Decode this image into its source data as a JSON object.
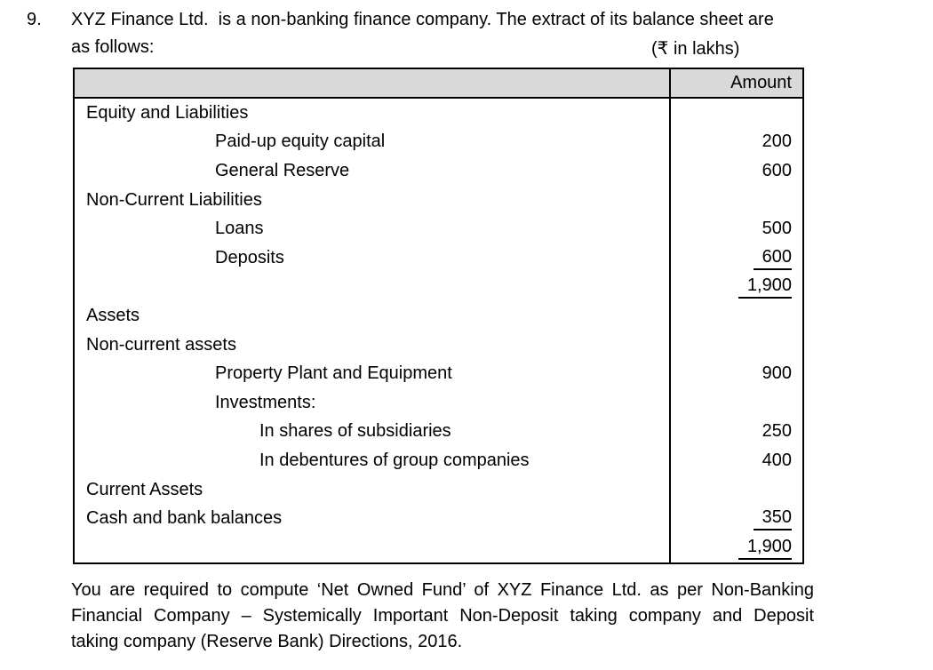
{
  "intro": {
    "number": "9.",
    "line1": "XYZ Finance Ltd.  is a non-banking finance company. The extract of its balance sheet are",
    "line2": "as follows:",
    "currency_note": "(₹ in lakhs)"
  },
  "table": {
    "amount_header": "Amount",
    "rows": [
      {
        "label": "Equity and Liabilities",
        "indent": 0,
        "amount": "",
        "underline": false
      },
      {
        "label": "Paid-up equity capital",
        "indent": 1,
        "amount": "200",
        "underline": false
      },
      {
        "label": "General Reserve",
        "indent": 1,
        "amount": "600",
        "underline": false
      },
      {
        "label": "Non-Current Liabilities",
        "indent": 0,
        "amount": "",
        "underline": false
      },
      {
        "label": "Loans",
        "indent": 1,
        "amount": "500",
        "underline": false
      },
      {
        "label": "Deposits",
        "indent": 1,
        "amount": "600",
        "underline": true
      },
      {
        "label": "",
        "indent": 0,
        "amount": "1,900",
        "underline": true
      },
      {
        "label": "Assets",
        "indent": 0,
        "amount": "",
        "underline": false
      },
      {
        "label": "Non-current assets",
        "indent": 0,
        "amount": "",
        "underline": false
      },
      {
        "label": "Property Plant and Equipment",
        "indent": 1,
        "amount": "900",
        "underline": false
      },
      {
        "label": "Investments:",
        "indent": 1,
        "amount": "",
        "underline": false
      },
      {
        "label": "In shares of subsidiaries",
        "indent": 2,
        "amount": "250",
        "underline": false
      },
      {
        "label": "In debentures of group companies",
        "indent": 2,
        "amount": "400",
        "underline": false
      },
      {
        "label": "Current Assets",
        "indent": 0,
        "amount": "",
        "underline": false
      },
      {
        "label": "Cash and bank balances",
        "indent": 0,
        "amount": "350",
        "underline": true
      },
      {
        "label": "",
        "indent": 0,
        "amount": "1,900",
        "underline": true
      }
    ]
  },
  "question": {
    "line1": "You are required to compute ‘Net Owned Fund’ of XYZ Finance Ltd. as per Non-Banking",
    "line2": "Financial Company – Systemically Important Non-Deposit taking company and Deposit",
    "line3": "taking company (Reserve Bank) Directions, 2016."
  }
}
